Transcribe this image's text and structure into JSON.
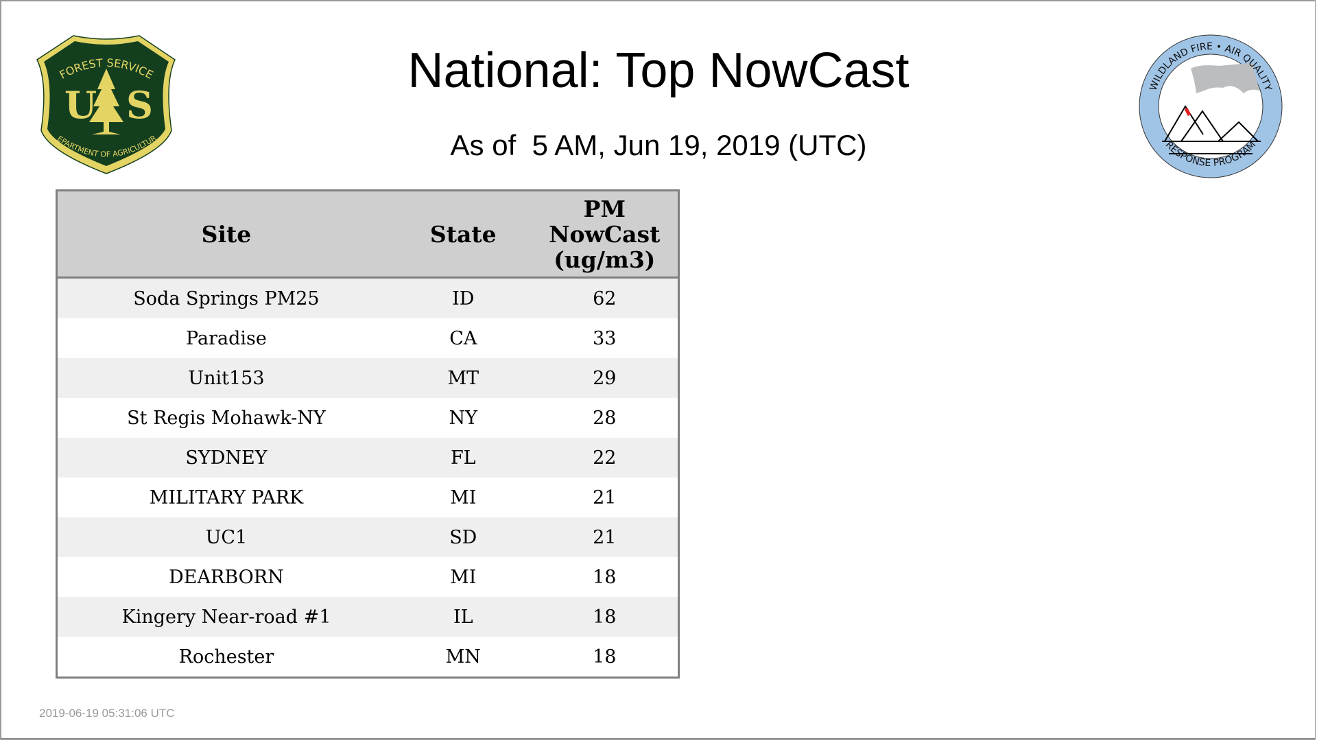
{
  "header": {
    "title": "National: Top NowCast",
    "subtitle": "As of  5 AM, Jun 19, 2019 (UTC)"
  },
  "logos": {
    "left": {
      "name": "usfs-shield-logo",
      "text": [
        "FOREST SERVICE",
        "U",
        "S",
        "DEPARTMENT OF AGRICULTURE"
      ],
      "colors": {
        "green": "#143f1f",
        "yellow": "#e3d464"
      }
    },
    "right": {
      "name": "wildland-fire-air-quality-logo",
      "text": [
        "WILDLAND FIRE • AIR QUALITY",
        "RESPONSE PROGRAM"
      ],
      "colors": {
        "ring": "#a0c4e6",
        "smoke": "#bcbdbf",
        "flame": "#e02020"
      }
    }
  },
  "table": {
    "columns": [
      "Site",
      "State",
      "PM NowCast (ug/m3)"
    ],
    "column_lines": [
      [
        "Site"
      ],
      [
        "State"
      ],
      [
        "PM",
        "NowCast",
        "(ug/m3)"
      ]
    ],
    "rows": [
      {
        "site": "Soda Springs PM25",
        "state": "ID",
        "value": "62"
      },
      {
        "site": "Paradise",
        "state": "CA",
        "value": "33"
      },
      {
        "site": "Unit153",
        "state": "MT",
        "value": "29"
      },
      {
        "site": "St Regis Mohawk-NY",
        "state": "NY",
        "value": "28"
      },
      {
        "site": "SYDNEY",
        "state": "FL",
        "value": "22"
      },
      {
        "site": "MILITARY PARK",
        "state": "MI",
        "value": "21"
      },
      {
        "site": "UC1",
        "state": "SD",
        "value": "21"
      },
      {
        "site": "DEARBORN",
        "state": "MI",
        "value": "18"
      },
      {
        "site": "Kingery Near-road #1",
        "state": "IL",
        "value": "18"
      },
      {
        "site": "Rochester",
        "state": "MN",
        "value": "18"
      }
    ]
  },
  "footer": {
    "timestamp": "2019-06-19 05:31:06 UTC"
  }
}
